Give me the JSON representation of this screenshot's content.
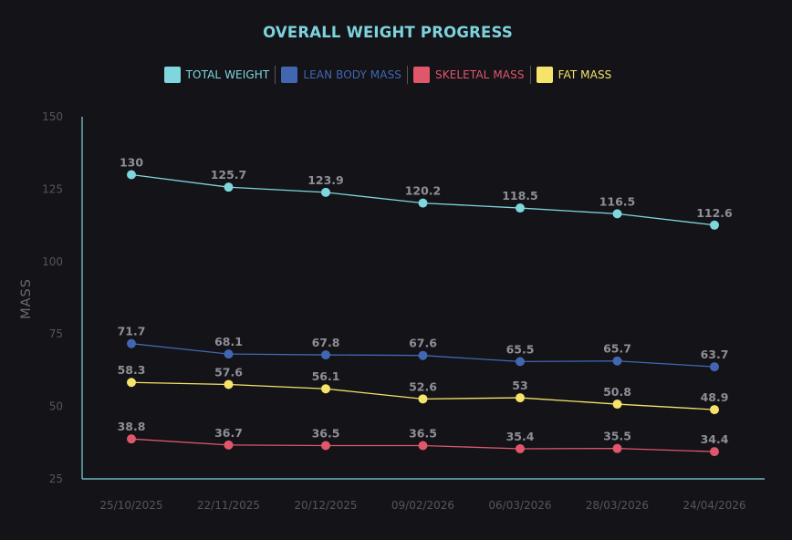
{
  "chart_data": {
    "type": "line",
    "title": "OVERALL WEIGHT PROGRESS",
    "xlabel": "",
    "ylabel": "MASS",
    "ylim": [
      25,
      150
    ],
    "yticks": [
      25,
      50,
      75,
      100,
      125,
      150
    ],
    "categories": [
      "25/10/2025",
      "22/11/2025",
      "20/12/2025",
      "09/02/2026",
      "06/03/2026",
      "28/03/2026",
      "24/04/2026"
    ],
    "legend_position": "top-center",
    "grid": false,
    "series": [
      {
        "name": "TOTAL WEIGHT",
        "color": "#7fd6dd",
        "values": [
          130,
          125.7,
          123.9,
          120.2,
          118.5,
          116.5,
          112.6
        ]
      },
      {
        "name": "LEAN BODY MASS",
        "color": "#4267b2",
        "values": [
          71.7,
          68.1,
          67.8,
          67.6,
          65.5,
          65.7,
          63.7
        ]
      },
      {
        "name": "SKELETAL MASS",
        "color": "#e0576c",
        "values": [
          38.8,
          36.7,
          36.5,
          36.5,
          35.4,
          35.5,
          34.4
        ]
      },
      {
        "name": "FAT MASS",
        "color": "#f5e36a",
        "values": [
          58.3,
          57.6,
          56.1,
          52.6,
          53,
          50.8,
          48.9
        ]
      }
    ]
  }
}
